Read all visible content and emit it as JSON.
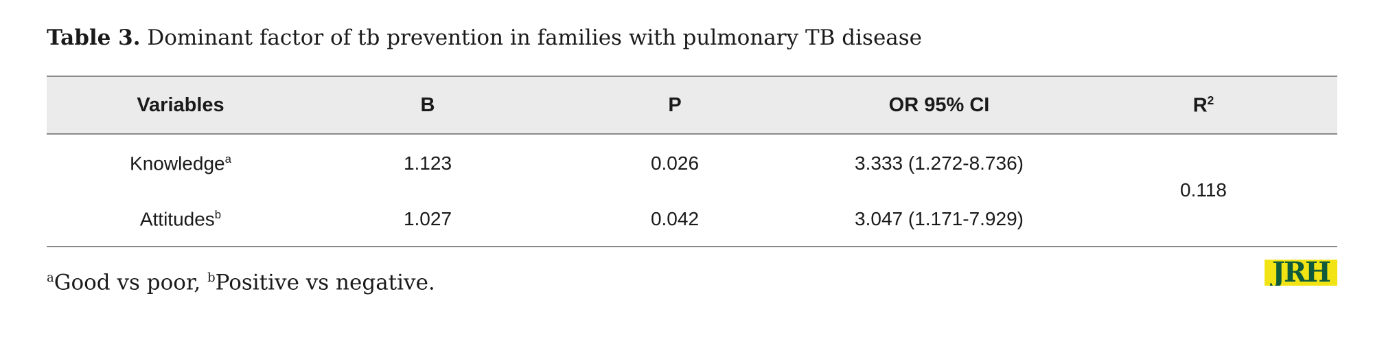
{
  "caption": {
    "label": "Table 3.",
    "text": " Dominant factor of tb prevention in families with pulmonary TB disease"
  },
  "table": {
    "headers": {
      "variables": "Variables",
      "b": "B",
      "p": "P",
      "or": "OR 95% CI",
      "r2_base": "R",
      "r2_sup": "2"
    },
    "rows": [
      {
        "variable": "Knowledge",
        "variable_sup": "a",
        "b": "1.123",
        "p": "0.026",
        "or": "3.333 (1.272-8.736)"
      },
      {
        "variable": "Attitudes",
        "variable_sup": "b",
        "b": "1.027",
        "p": "0.042",
        "or": "3.047 (1.171-7.929)"
      }
    ],
    "r2_value": "0.118"
  },
  "footnote": {
    "sup_a": "a",
    "text_a": "Good vs poor, ",
    "sup_b": "b",
    "text_b": "Positive vs negative."
  },
  "logo": {
    "text": "JRH",
    "background_color": "#f2e414",
    "text_color": "#0e5a3a"
  }
}
